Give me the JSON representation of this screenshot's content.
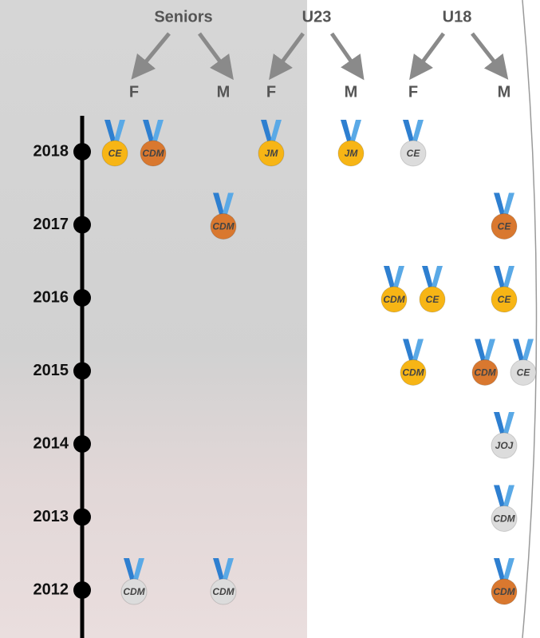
{
  "groups": [
    {
      "label": "Seniors",
      "columns": [
        "F",
        "M"
      ]
    },
    {
      "label": "U23",
      "columns": [
        "F",
        "M"
      ]
    },
    {
      "label": "U18",
      "columns": [
        "F",
        "M"
      ]
    }
  ],
  "years": [
    "2018",
    "2017",
    "2016",
    "2015",
    "2014",
    "2013",
    "2012"
  ],
  "medals": [
    {
      "year": "2018",
      "group": 0,
      "column": 0,
      "label": "CE",
      "color": "#f7b515"
    },
    {
      "year": "2018",
      "group": 0,
      "column": 0,
      "label": "CDM",
      "color": "#d9782f"
    },
    {
      "year": "2018",
      "group": 1,
      "column": 0,
      "label": "JM",
      "color": "#f7b515"
    },
    {
      "year": "2018",
      "group": 1,
      "column": 1,
      "label": "JM",
      "color": "#f7b515"
    },
    {
      "year": "2018",
      "group": 2,
      "column": 0,
      "label": "CE",
      "color": "#dcdcdc"
    },
    {
      "year": "2017",
      "group": 0,
      "column": 1,
      "label": "CDM",
      "color": "#d9782f"
    },
    {
      "year": "2017",
      "group": 2,
      "column": 1,
      "label": "CE",
      "color": "#d9782f"
    },
    {
      "year": "2016",
      "group": 2,
      "column": 0,
      "label": "CDM",
      "color": "#f7b515"
    },
    {
      "year": "2016",
      "group": 2,
      "column": 0,
      "label": "CE",
      "color": "#f7b515"
    },
    {
      "year": "2016",
      "group": 2,
      "column": 1,
      "label": "CE",
      "color": "#f7b515"
    },
    {
      "year": "2015",
      "group": 2,
      "column": 0,
      "label": "CDM",
      "color": "#f7b515"
    },
    {
      "year": "2015",
      "group": 2,
      "column": 1,
      "label": "CDM",
      "color": "#d9782f"
    },
    {
      "year": "2015",
      "group": 2,
      "column": 1,
      "label": "CE",
      "color": "#dcdcdc"
    },
    {
      "year": "2014",
      "group": 2,
      "column": 1,
      "label": "JOJ",
      "color": "#dcdcdc"
    },
    {
      "year": "2013",
      "group": 2,
      "column": 1,
      "label": "CDM",
      "color": "#dcdcdc"
    },
    {
      "year": "2012",
      "group": 0,
      "column": 0,
      "label": "CDM",
      "color": "#dcdcdc"
    },
    {
      "year": "2012",
      "group": 0,
      "column": 1,
      "label": "CDM",
      "color": "#dcdcdc"
    },
    {
      "year": "2012",
      "group": 2,
      "column": 1,
      "label": "CDM",
      "color": "#d9782f"
    }
  ]
}
